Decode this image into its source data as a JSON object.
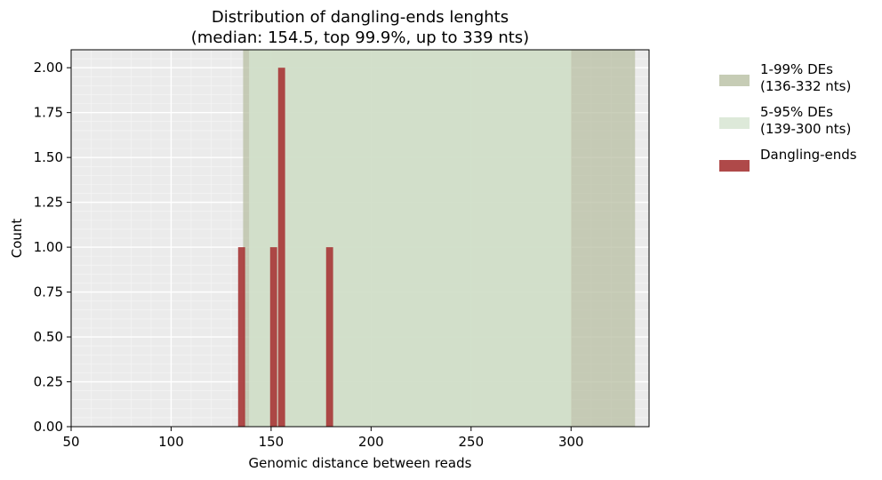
{
  "chart_data": {
    "type": "bar",
    "title": "Distribution of dangling-ends lenghts",
    "subtitle": "(median: 154.5, top 99.9%, up to 339 nts)",
    "xlabel": "Genomic distance between reads",
    "ylabel": "Count",
    "xlim": [
      50,
      339
    ],
    "ylim": [
      0,
      2.1
    ],
    "xticks": [
      "50",
      "100",
      "150",
      "200",
      "250",
      "300"
    ],
    "yticks": [
      "0.00",
      "0.25",
      "0.50",
      "0.75",
      "1.00",
      "1.25",
      "1.50",
      "1.75",
      "2.00"
    ],
    "grid": true,
    "legend_position": "outside-right",
    "bands": [
      {
        "name": "1-99% DEs\n(136-332 nts)",
        "from": 136,
        "to": 332,
        "color": "#b8bfa3",
        "opacity": 0.75
      },
      {
        "name": "5-95% DEs\n(139-300 nts)",
        "from": 139,
        "to": 300,
        "color": "#d5e3cf",
        "opacity": 0.8
      }
    ],
    "series": [
      {
        "name": "Dangling-ends",
        "color": "#a83a3a",
        "bin_width": 3.5,
        "x": [
          133.5,
          149.5,
          153.5,
          177.5
        ],
        "values": [
          1,
          1,
          2,
          1
        ]
      }
    ]
  }
}
